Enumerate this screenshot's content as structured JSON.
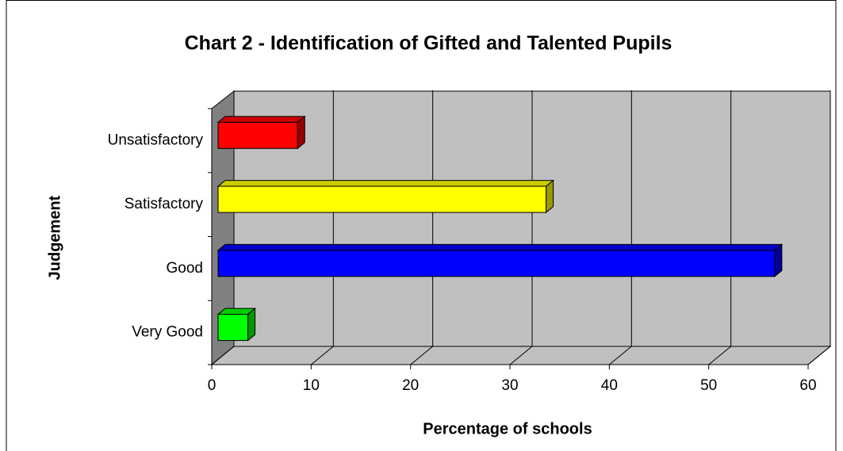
{
  "chart_data": {
    "type": "bar3d_horizontal",
    "title": "Chart 2 - Identification of Gifted and Talented Pupils",
    "x_label": "Percentage of schools",
    "y_label": "Judgement",
    "categories": [
      "Unsatisfactory",
      "Satisfactory",
      "Good",
      "Very Good"
    ],
    "values": [
      8,
      33,
      56,
      3
    ],
    "colors": [
      "#ff0000",
      "#ffff00",
      "#0000ff",
      "#00ff00"
    ],
    "xlim": [
      0,
      60
    ],
    "xticks": [
      0,
      10,
      20,
      30,
      40,
      50,
      60
    ],
    "grid": true
  }
}
